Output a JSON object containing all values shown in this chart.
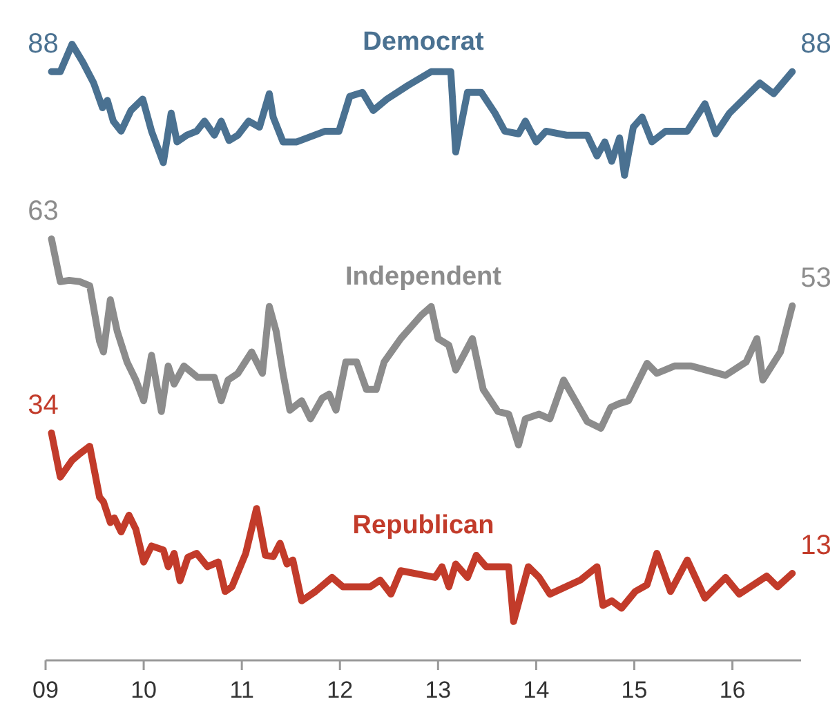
{
  "chart_data": {
    "type": "line",
    "xlim": [
      2009,
      2016.7
    ],
    "xticks": [
      {
        "value": 2009,
        "label": "09"
      },
      {
        "value": 2010,
        "label": "10"
      },
      {
        "value": 2011,
        "label": "11"
      },
      {
        "value": 2012,
        "label": "12"
      },
      {
        "value": 2013,
        "label": "13"
      },
      {
        "value": 2014,
        "label": "14"
      },
      {
        "value": 2015,
        "label": "15"
      },
      {
        "value": 2016,
        "label": "16"
      }
    ],
    "tick_labels": "x",
    "grid": false,
    "legend": false,
    "marker": "none",
    "line_style": "solid",
    "series": [
      {
        "name": "Democrat",
        "color": "#4a7191",
        "x": [
          2009.06,
          2009.15,
          2009.27,
          2009.38,
          2009.49,
          2009.58,
          2009.63,
          2009.69,
          2009.77,
          2009.87,
          2009.99,
          2010.08,
          2010.2,
          2010.28,
          2010.34,
          2010.44,
          2010.54,
          2010.62,
          2010.72,
          2010.79,
          2010.87,
          2010.96,
          2011.07,
          2011.18,
          2011.28,
          2011.32,
          2011.42,
          2011.56,
          2011.85,
          2011.99,
          2012.1,
          2012.23,
          2012.34,
          2012.48,
          2012.69,
          2012.93,
          2013.13,
          2013.18,
          2013.3,
          2013.44,
          2013.58,
          2013.68,
          2013.82,
          2013.89,
          2014.0,
          2014.1,
          2014.31,
          2014.52,
          2014.62,
          2014.7,
          2014.77,
          2014.85,
          2014.9,
          2014.99,
          2015.08,
          2015.18,
          2015.32,
          2015.54,
          2015.72,
          2015.83,
          2015.97,
          2016.28,
          2016.42,
          2016.61
        ],
        "values": [
          88,
          88,
          92.1,
          89.4,
          86.3,
          82.6,
          83.7,
          80.6,
          79.1,
          82.2,
          83.9,
          79.1,
          74.4,
          81.8,
          77.5,
          78.5,
          79.1,
          80.6,
          78.5,
          80.6,
          77.7,
          78.5,
          80.6,
          79.7,
          84.7,
          81.2,
          77.5,
          77.5,
          79.1,
          79.1,
          84.3,
          84.9,
          82.2,
          83.9,
          85.9,
          88,
          88,
          76,
          84.9,
          84.9,
          81.8,
          79.1,
          78.7,
          80.6,
          77.5,
          79.1,
          78.5,
          78.5,
          75.4,
          77.5,
          74.6,
          78.1,
          72.5,
          79.7,
          81.2,
          77.5,
          79.1,
          79.1,
          83.2,
          78.7,
          81.8,
          86.3,
          84.7,
          88
        ],
        "value_labels": [
          "88",
          null,
          null,
          null,
          null,
          null,
          null,
          null,
          null,
          null,
          null,
          null,
          null,
          null,
          null,
          null,
          null,
          null,
          null,
          null,
          null,
          null,
          null,
          null,
          null,
          null,
          null,
          null,
          null,
          null,
          null,
          null,
          null,
          null,
          null,
          null,
          null,
          null,
          null,
          null,
          null,
          null,
          null,
          null,
          null,
          null,
          null,
          null,
          null,
          null,
          null,
          null,
          null,
          null,
          null,
          null,
          null,
          null,
          null,
          null,
          null,
          null,
          null,
          "88"
        ]
      },
      {
        "name": "Independent",
        "color": "#8c8c8c",
        "x": [
          2009.06,
          2009.15,
          2009.24,
          2009.35,
          2009.45,
          2009.55,
          2009.59,
          2009.66,
          2009.73,
          2009.83,
          2009.92,
          2010.0,
          2010.08,
          2010.18,
          2010.25,
          2010.31,
          2010.41,
          2010.55,
          2010.72,
          2010.79,
          2010.86,
          2010.96,
          2011.1,
          2011.21,
          2011.28,
          2011.35,
          2011.42,
          2011.49,
          2011.61,
          2011.7,
          2011.82,
          2011.89,
          2011.96,
          2012.06,
          2012.17,
          2012.27,
          2012.37,
          2012.45,
          2012.62,
          2012.83,
          2012.93,
          2013.0,
          2013.11,
          2013.18,
          2013.35,
          2013.46,
          2013.61,
          2013.72,
          2013.82,
          2013.89,
          2014.03,
          2014.14,
          2014.28,
          2014.52,
          2014.66,
          2014.76,
          2014.85,
          2014.94,
          2015.13,
          2015.23,
          2015.41,
          2015.58,
          2015.93,
          2016.14,
          2016.25,
          2016.31,
          2016.49,
          2016.61
        ],
        "values": [
          63,
          56.6,
          56.8,
          56.6,
          56,
          47.7,
          46.1,
          53.9,
          49.2,
          44.6,
          41.9,
          38.8,
          45.6,
          37.2,
          44,
          41.3,
          44,
          42.3,
          42.3,
          38.8,
          41.9,
          42.9,
          46.1,
          42.9,
          52.9,
          49.2,
          42.9,
          37.4,
          38.8,
          36.1,
          39.2,
          39.8,
          37.4,
          44.6,
          44.6,
          40.5,
          40.5,
          44.6,
          48.1,
          51.6,
          52.9,
          48.1,
          47.1,
          43.4,
          48.1,
          40.5,
          37.2,
          36.8,
          32.2,
          36.1,
          36.8,
          36.1,
          41.9,
          35.7,
          34.7,
          37.8,
          38.4,
          38.8,
          44.4,
          42.9,
          44,
          44,
          42.6,
          44.6,
          48.1,
          41.9,
          46.1,
          53
        ],
        "value_labels": [
          "63",
          null,
          null,
          null,
          null,
          null,
          null,
          null,
          null,
          null,
          null,
          null,
          null,
          null,
          null,
          null,
          null,
          null,
          null,
          null,
          null,
          null,
          null,
          null,
          null,
          null,
          null,
          null,
          null,
          null,
          null,
          null,
          null,
          null,
          null,
          null,
          null,
          null,
          null,
          null,
          null,
          null,
          null,
          null,
          null,
          null,
          null,
          null,
          null,
          null,
          null,
          null,
          null,
          null,
          null,
          null,
          null,
          null,
          null,
          null,
          null,
          null,
          null,
          null,
          null,
          null,
          null,
          "53"
        ]
      },
      {
        "name": "Republican",
        "color": "#c23b2a",
        "x": [
          2009.06,
          2009.15,
          2009.27,
          2009.35,
          2009.45,
          2009.55,
          2009.59,
          2009.66,
          2009.7,
          2009.77,
          2009.85,
          2009.92,
          2010.0,
          2010.08,
          2010.2,
          2010.25,
          2010.31,
          2010.37,
          2010.45,
          2010.54,
          2010.65,
          2010.76,
          2010.83,
          2010.9,
          2011.04,
          2011.15,
          2011.24,
          2011.32,
          2011.39,
          2011.46,
          2011.52,
          2011.61,
          2011.75,
          2011.92,
          2012.03,
          2012.31,
          2012.41,
          2012.52,
          2012.62,
          2012.97,
          2013.04,
          2013.11,
          2013.18,
          2013.3,
          2013.39,
          2013.49,
          2013.72,
          2013.77,
          2013.92,
          2014.03,
          2014.14,
          2014.45,
          2014.62,
          2014.68,
          2014.77,
          2014.87,
          2015.01,
          2015.13,
          2015.23,
          2015.37,
          2015.54,
          2015.72,
          2015.93,
          2016.07,
          2016.35,
          2016.46,
          2016.61
        ],
        "values": [
          34,
          27.4,
          29.9,
          30.9,
          32,
          24.4,
          23.7,
          20.6,
          21.3,
          19.2,
          21.7,
          19.6,
          14.7,
          17.1,
          16.5,
          14,
          16,
          11.9,
          15.4,
          16,
          14,
          14.7,
          10.3,
          11,
          16,
          22.7,
          15.7,
          15.5,
          17.5,
          14.4,
          15,
          8.9,
          10.3,
          12.4,
          11,
          11,
          12,
          9.9,
          13.4,
          12.4,
          14,
          11,
          14.4,
          12.4,
          15.7,
          14,
          14,
          5.8,
          14,
          12.4,
          9.9,
          12,
          14,
          8.2,
          8.9,
          7.8,
          10.3,
          11.3,
          16,
          10.3,
          15,
          9.3,
          12.4,
          9.9,
          12.6,
          11,
          13
        ],
        "value_labels": [
          "34",
          null,
          null,
          null,
          null,
          null,
          null,
          null,
          null,
          null,
          null,
          null,
          null,
          null,
          null,
          null,
          null,
          null,
          null,
          null,
          null,
          null,
          null,
          null,
          null,
          null,
          null,
          null,
          null,
          null,
          null,
          null,
          null,
          null,
          null,
          null,
          null,
          null,
          null,
          null,
          null,
          null,
          null,
          null,
          null,
          null,
          null,
          null,
          null,
          null,
          null,
          null,
          null,
          null,
          null,
          null,
          null,
          null,
          null,
          null,
          null,
          null,
          null,
          null,
          null,
          null,
          "13"
        ]
      }
    ]
  }
}
